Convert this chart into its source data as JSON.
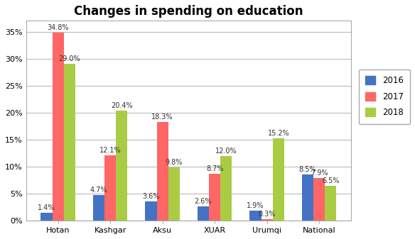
{
  "title": "Changes in spending on education",
  "categories": [
    "Hotan",
    "Kashgar",
    "Aksu",
    "XUAR",
    "Urumqi",
    "National"
  ],
  "series": {
    "2016": [
      1.4,
      4.7,
      3.6,
      2.6,
      1.9,
      8.5
    ],
    "2017": [
      34.8,
      12.1,
      18.3,
      8.7,
      0.3,
      7.9
    ],
    "2018": [
      29.0,
      20.4,
      9.8,
      12.0,
      15.2,
      6.5
    ]
  },
  "colors": {
    "2016": "#4472C4",
    "2017": "#FF6666",
    "2018": "#AACC44"
  },
  "ylim": [
    0,
    37
  ],
  "yticks": [
    0,
    5,
    10,
    15,
    20,
    25,
    30,
    35
  ],
  "yticklabels": [
    "0%",
    "5%",
    "10%",
    "15%",
    "20%",
    "25%",
    "30%",
    "35%"
  ],
  "bar_width": 0.22,
  "label_fontsize": 7,
  "title_fontsize": 12,
  "legend_fontsize": 8.5,
  "tick_fontsize": 8,
  "background_color": "#FFFFFF",
  "grid_color": "#BBBBBB"
}
